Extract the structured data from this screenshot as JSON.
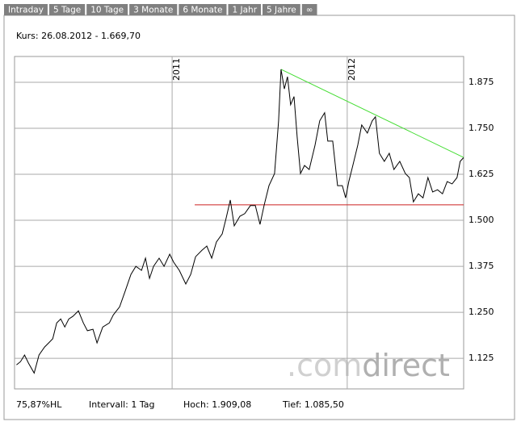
{
  "tabs": [
    "Intraday",
    "5 Tage",
    "10 Tage",
    "3 Monate",
    "6 Monate",
    "1 Jahr",
    "5 Jahre",
    "∞"
  ],
  "quote": "Kurs: 26.08.2012 - 1.669,70",
  "footer": [
    "75,87%HL",
    "Intervall: 1 Tag",
    "Hoch: 1.909,08",
    "Tief: 1.085,50"
  ],
  "watermark": [
    ".com",
    "direct"
  ],
  "chart_data": {
    "type": "line",
    "color": "#000000",
    "x": [
      2010.111,
      2010.134,
      2010.157,
      2010.18,
      2010.212,
      2010.24,
      2010.272,
      2010.295,
      2010.318,
      2010.341,
      2010.364,
      2010.387,
      2010.41,
      2010.433,
      2010.465,
      2010.493,
      2010.516,
      2010.548,
      2010.571,
      2010.604,
      2010.641,
      2010.664,
      2010.7,
      2010.733,
      2010.765,
      2010.793,
      2010.825,
      2010.848,
      2010.871,
      2010.894,
      2010.926,
      2010.954,
      2010.986,
      2011.009,
      2011.041,
      2011.078,
      2011.106,
      2011.134,
      2011.171,
      2011.198,
      2011.226,
      2011.253,
      2011.286,
      2011.309,
      2011.332,
      2011.355,
      2011.387,
      2011.415,
      2011.447,
      2011.475,
      2011.502,
      2011.525,
      2011.553,
      2011.585,
      2011.608,
      2011.622,
      2011.641,
      2011.659,
      2011.677,
      2011.696,
      2011.714,
      2011.733,
      2011.756,
      2011.783,
      2011.816,
      2011.843,
      2011.871,
      2011.889,
      2011.917,
      2011.945,
      2011.972,
      2011.991,
      2012.009,
      2012.032,
      2012.06,
      2012.083,
      2012.115,
      2012.143,
      2012.161,
      2012.184,
      2012.212,
      2012.24,
      2012.267,
      2012.3,
      2012.332,
      2012.355,
      2012.378,
      2012.406,
      2012.433,
      2012.461,
      2012.488,
      2012.516,
      2012.544,
      2012.571,
      2012.599,
      2012.627,
      2012.645,
      2012.664
    ],
    "values": [
      1107,
      1116,
      1134,
      1112,
      1085,
      1134,
      1156,
      1167,
      1178,
      1221,
      1232,
      1210,
      1232,
      1239,
      1254,
      1221,
      1200,
      1204,
      1167,
      1210,
      1221,
      1243,
      1265,
      1309,
      1353,
      1375,
      1364,
      1397,
      1342,
      1375,
      1397,
      1375,
      1408,
      1386,
      1364,
      1327,
      1353,
      1401,
      1419,
      1430,
      1397,
      1441,
      1463,
      1507,
      1555,
      1485,
      1511,
      1518,
      1540,
      1540,
      1489,
      1540,
      1594,
      1627,
      1770,
      1910,
      1857,
      1890,
      1814,
      1836,
      1726,
      1627,
      1649,
      1638,
      1704,
      1770,
      1792,
      1715,
      1715,
      1594,
      1594,
      1561,
      1605,
      1649,
      1704,
      1759,
      1737,
      1770,
      1781,
      1682,
      1660,
      1682,
      1638,
      1660,
      1627,
      1616,
      1550,
      1572,
      1561,
      1616,
      1577,
      1583,
      1572,
      1605,
      1599,
      1616,
      1660,
      1670
    ],
    "xlim": [
      2010.1,
      2012.665
    ],
    "xticks": [
      2011,
      2012
    ],
    "ylim": [
      1042,
      1945
    ],
    "yticks": [
      {
        "value": 1125,
        "label": "1.125"
      },
      {
        "value": 1250,
        "label": "1.250"
      },
      {
        "value": 1375,
        "label": "1.375"
      },
      {
        "value": 1500,
        "label": "1.500"
      },
      {
        "value": 1625,
        "label": "1.625"
      },
      {
        "value": 1750,
        "label": "1.750"
      },
      {
        "value": 1875,
        "label": "1.875"
      }
    ],
    "grid": true,
    "trendlines": [
      {
        "color": "#44dd33",
        "x": [
          2011.622,
          2012.664
        ],
        "values": [
          1910,
          1671
        ]
      },
      {
        "color": "#cc2222",
        "x": [
          2011.129,
          2012.665
        ],
        "values": [
          1542,
          1542
        ]
      }
    ]
  }
}
